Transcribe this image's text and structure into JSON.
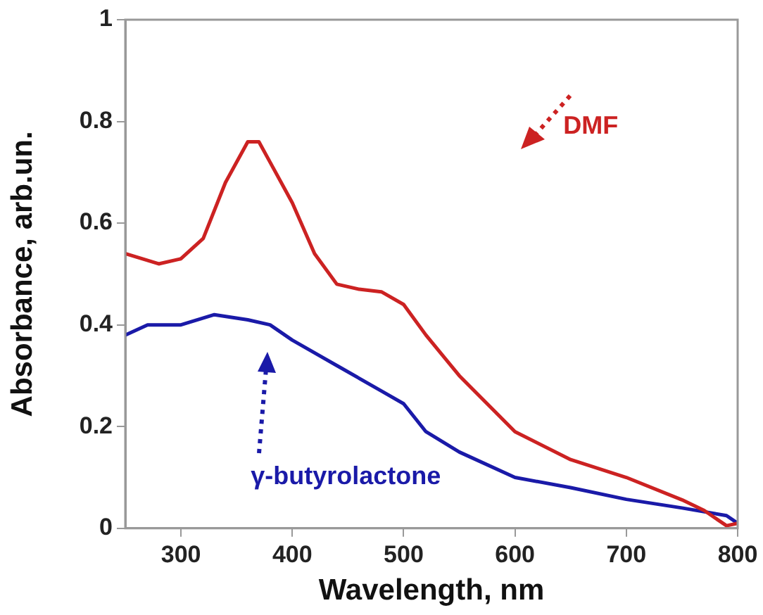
{
  "chart_data": {
    "type": "line",
    "xlabel": "Wavelength, nm",
    "ylabel": "Absorbance, arb.un.",
    "xlim": [
      250,
      800
    ],
    "xticks": [
      300,
      400,
      500,
      600,
      700,
      800
    ],
    "ylim": [
      0,
      1
    ],
    "yticks": [
      0,
      0.2,
      0.4,
      0.6,
      0.8,
      1
    ],
    "grid": false,
    "marker": "none",
    "line_style": "solid",
    "series": [
      {
        "name": "DMF",
        "color": "#cc2222",
        "x": [
          250,
          265,
          280,
          300,
          320,
          340,
          360,
          370,
          380,
          400,
          420,
          440,
          460,
          480,
          500,
          520,
          550,
          600,
          650,
          700,
          750,
          770,
          790,
          800
        ],
        "values": [
          0.54,
          0.53,
          0.52,
          0.53,
          0.57,
          0.68,
          0.76,
          0.76,
          0.72,
          0.64,
          0.54,
          0.48,
          0.47,
          0.465,
          0.44,
          0.38,
          0.3,
          0.19,
          0.135,
          0.1,
          0.056,
          0.035,
          0.005,
          0.01
        ]
      },
      {
        "name": "γ-butyrolactone",
        "color": "#1a1aa8",
        "x": [
          250,
          270,
          300,
          330,
          360,
          380,
          400,
          440,
          480,
          500,
          520,
          550,
          600,
          650,
          700,
          750,
          790,
          800
        ],
        "values": [
          0.38,
          0.4,
          0.4,
          0.42,
          0.41,
          0.4,
          0.37,
          0.32,
          0.27,
          0.245,
          0.19,
          0.15,
          0.1,
          0.08,
          0.057,
          0.04,
          0.025,
          0.01
        ]
      }
    ]
  }
}
